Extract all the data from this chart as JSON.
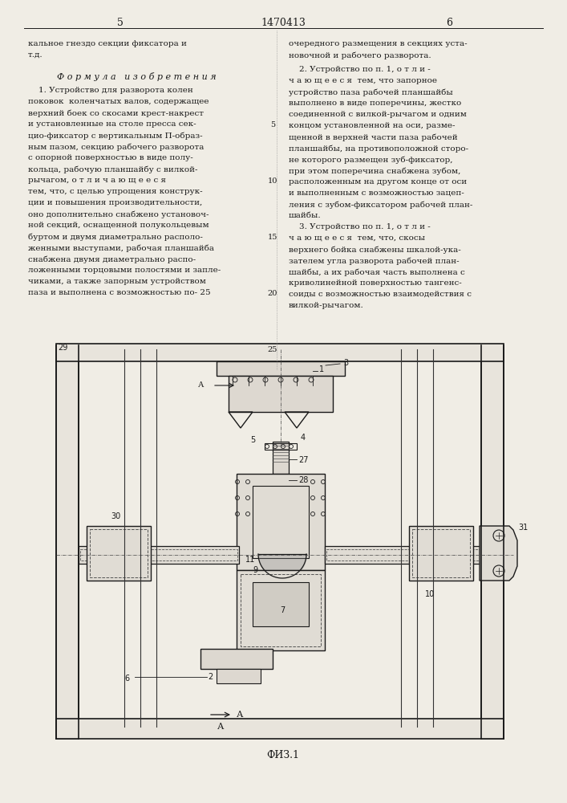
{
  "bg_color": "#f5f5f0",
  "page_color": "#f0ede5",
  "text_color": "#1a1a1a",
  "title_center": "1470413",
  "page_left": "5",
  "page_right": "6",
  "formula_header": "Ф о р м у л а   и з о б р е т е н и я",
  "left_top_text": [
    "кальное гнездо секции фиксатора и",
    "т.д."
  ],
  "right_top_text": [
    "очередного размещения в секциях уста-",
    "новочной и рабочего разворота."
  ],
  "claim2_right": [
    "    2. Устройство по п. 1, о т л и -",
    "ч а ю щ е е с я  тем, что запорное",
    "устройство паза рабочей планшайбы",
    "выполнено в виде поперечины, жестко",
    "соединенной с вилкой-рычагом и одним",
    "концом установленной на оси, разме-",
    "щенной в верхней части паза рабочей",
    "планшайбы, на противоположной сторо-",
    "не которого размещен зуб-фиксатор,",
    "при этом поперечина снабжена зубом,",
    "расположенным на другом конце от оси",
    "и выполненным с возможностью зацеп-",
    "ления с зубом-фиксатором рабочей план-",
    "шайбы."
  ],
  "claim3_right": [
    "    3. Устройство по п. 1, о т л и -",
    "ч а ю щ е е с я  тем, что, скосы",
    "верхнего бойка снабжены шкалой-ука-",
    "зателем угла разворота рабочей план-",
    "шайбы, а их рабочая часть выполнена с",
    "криволинейной поверхностью тангенс-",
    "соиды с возможностью взаимодействия с",
    "вилкой-рычагом."
  ],
  "claim1_left": [
    "    1. Устройство для разворота колен",
    "поковок  коленчатых валов, содержащее",
    "верхний боек со скосами крест-накрест",
    "и установленные на столе пресса сек-",
    "цио-фиксатор с вертикальным П-образ-",
    "ным пазом, секцию рабочего разворота",
    "с опорной поверхностью в виде полу-",
    "кольца, рабочую планшайбу с вилкой-",
    "рычагом, о т л и ч а ю щ е е с я",
    "тем, что, с целью упрощения конструк-",
    "ции и повышения производительности,",
    "оно дополнительно снабжено установоч-",
    "ной секций, оснащенной полукольцевым",
    "буртом и двумя диаметрально располо-",
    "женными выступами, рабочая планшайба",
    "снабжена двумя диаметрально распо-",
    "ложенными торцовыми полостями и запле-",
    "чиками, а также запорным устройством",
    "паза и выполнена с возможностью по- 25"
  ],
  "fig_caption": "ФИЗ.1"
}
